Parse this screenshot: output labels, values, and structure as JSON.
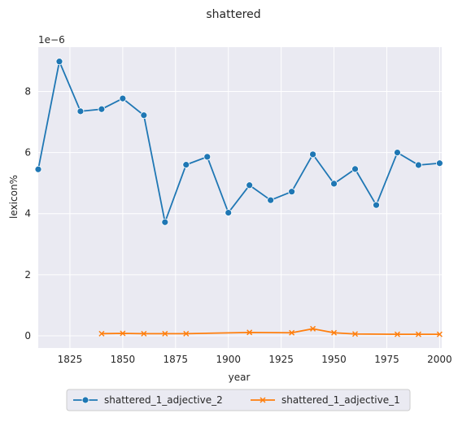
{
  "chart_data": {
    "type": "line",
    "title": "shattered",
    "xlabel": "year",
    "ylabel": "lexicon%",
    "y_scale_label": "1e−6",
    "xlim": [
      1810,
      2001
    ],
    "ylim": [
      -0.4,
      9.45
    ],
    "x_ticks": [
      1825,
      1850,
      1875,
      1900,
      1925,
      1950,
      1975,
      2000
    ],
    "y_ticks": [
      0,
      2,
      4,
      6,
      8
    ],
    "grid": true,
    "legend_position": "bottom-center",
    "series": [
      {
        "name": "shattered_1_adjective_2",
        "color": "#1f77b4",
        "marker": "circle",
        "x": [
          1810,
          1820,
          1830,
          1840,
          1850,
          1860,
          1870,
          1880,
          1890,
          1900,
          1910,
          1920,
          1930,
          1940,
          1950,
          1960,
          1970,
          1980,
          1990,
          2000
        ],
        "y": [
          5.45,
          8.98,
          7.35,
          7.42,
          7.77,
          7.22,
          3.72,
          5.6,
          5.86,
          4.03,
          4.93,
          4.44,
          4.72,
          5.94,
          4.98,
          5.46,
          4.28,
          6.0,
          5.59,
          5.65
        ]
      },
      {
        "name": "shattered_1_adjective_1",
        "color": "#ff7f0e",
        "marker": "x",
        "x": [
          1840,
          1850,
          1860,
          1870,
          1880,
          1910,
          1930,
          1940,
          1950,
          1960,
          1980,
          1990,
          2000
        ],
        "y": [
          0.07,
          0.08,
          0.07,
          0.07,
          0.07,
          0.11,
          0.1,
          0.23,
          0.1,
          0.06,
          0.05,
          0.05,
          0.05
        ]
      }
    ]
  }
}
